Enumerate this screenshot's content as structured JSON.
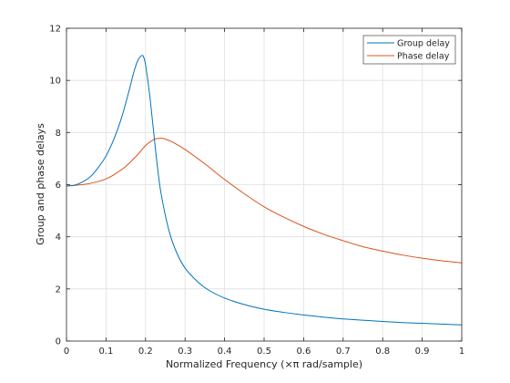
{
  "chart_data": {
    "type": "line",
    "title": "",
    "xlabel": "Normalized Frequency (×π rad/sample)",
    "ylabel": "Group and phase delays",
    "xlim": [
      0,
      1
    ],
    "ylim": [
      0,
      12
    ],
    "x_ticks": [
      0,
      0.1,
      0.2,
      0.3,
      0.4,
      0.5,
      0.6,
      0.7,
      0.8,
      0.9,
      1
    ],
    "x_tick_labels": [
      "0",
      "0.1",
      "0.2",
      "0.3",
      "0.4",
      "0.5",
      "0.6",
      "0.7",
      "0.8",
      "0.9",
      "1"
    ],
    "y_ticks": [
      0,
      2,
      4,
      6,
      8,
      10,
      12
    ],
    "y_tick_labels": [
      "0",
      "2",
      "4",
      "6",
      "8",
      "10",
      "12"
    ],
    "grid": true,
    "legend_position": "top-right",
    "series": [
      {
        "name": "Group delay",
        "color": "#0072BD",
        "x": [
          0,
          0.02,
          0.04,
          0.06,
          0.08,
          0.1,
          0.12,
          0.14,
          0.16,
          0.17,
          0.18,
          0.19,
          0.195,
          0.2,
          0.21,
          0.22,
          0.23,
          0.24,
          0.26,
          0.28,
          0.3,
          0.33,
          0.36,
          0.4,
          0.45,
          0.5,
          0.55,
          0.6,
          0.65,
          0.7,
          0.75,
          0.8,
          0.85,
          0.9,
          0.95,
          1
        ],
        "y": [
          5.95,
          5.98,
          6.1,
          6.3,
          6.65,
          7.1,
          7.75,
          8.6,
          9.7,
          10.3,
          10.75,
          10.95,
          10.9,
          10.6,
          9.5,
          8.1,
          6.7,
          5.6,
          4.2,
          3.35,
          2.8,
          2.3,
          1.95,
          1.65,
          1.4,
          1.22,
          1.1,
          1.0,
          0.92,
          0.85,
          0.8,
          0.75,
          0.71,
          0.68,
          0.65,
          0.62
        ]
      },
      {
        "name": "Phase delay",
        "color": "#D95319",
        "x": [
          0,
          0.02,
          0.05,
          0.08,
          0.1,
          0.12,
          0.15,
          0.18,
          0.2,
          0.22,
          0.23,
          0.24,
          0.25,
          0.27,
          0.3,
          0.35,
          0.4,
          0.45,
          0.5,
          0.55,
          0.6,
          0.65,
          0.7,
          0.75,
          0.8,
          0.85,
          0.9,
          0.95,
          1
        ],
        "y": [
          5.95,
          5.97,
          6.02,
          6.12,
          6.22,
          6.38,
          6.7,
          7.15,
          7.5,
          7.72,
          7.77,
          7.78,
          7.75,
          7.62,
          7.35,
          6.8,
          6.2,
          5.65,
          5.15,
          4.75,
          4.4,
          4.1,
          3.85,
          3.62,
          3.45,
          3.3,
          3.18,
          3.08,
          3.0
        ]
      }
    ]
  }
}
